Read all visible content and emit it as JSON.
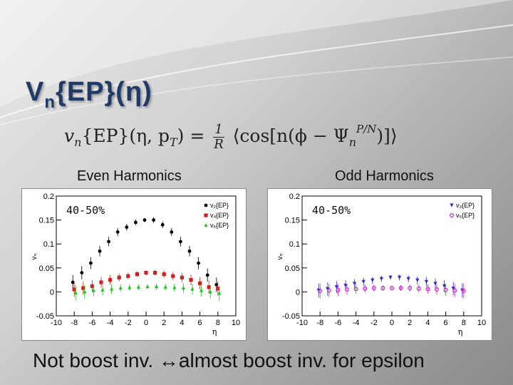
{
  "title": {
    "main": "V",
    "sub": "n",
    "rest": "{EP}(η)"
  },
  "formula": {
    "lhs_v": "v",
    "lhs_n": "n",
    "lhs_args": "{EP}(η, p",
    "lhs_T": "T",
    "lhs_close": ")",
    "eq": "=",
    "frac_num": "1",
    "frac_den": "R",
    "rhs": "⟨cos[n(ϕ − Ψ",
    "rhs_sub": "n",
    "rhs_sup": "P/N",
    "rhs_close": ")]⟩"
  },
  "captions": {
    "left": "Even Harmonics",
    "right": "Odd Harmonics"
  },
  "footer": "Not boost inv. ↔almost boost inv. for epsilon",
  "chart_data": [
    {
      "type": "scatter",
      "title": "",
      "annotation": "40-50%",
      "xlabel": "η",
      "ylabel": "vₙ",
      "xlim": [
        -10,
        10
      ],
      "ylim": [
        -0.05,
        0.2
      ],
      "xticks": [
        -10,
        -8,
        -6,
        -4,
        -2,
        0,
        2,
        4,
        6,
        8,
        10
      ],
      "yticks": [
        -0.05,
        0,
        0.05,
        0.1,
        0.15,
        0.2
      ],
      "ytick_labels": [
        "-0.05",
        "0",
        "0.05",
        "0.1",
        "0.15",
        "0.2"
      ],
      "legend_placement": "top-right",
      "series": [
        {
          "name": "v₂{EP}",
          "color": "#000000",
          "marker": "circle",
          "x": [
            -8,
            -7,
            -6,
            -5,
            -4,
            -3,
            -2,
            -1,
            0,
            1,
            2,
            3,
            4,
            5,
            6,
            7,
            8
          ],
          "y": [
            0.02,
            0.04,
            0.06,
            0.085,
            0.105,
            0.125,
            0.135,
            0.145,
            0.15,
            0.15,
            0.14,
            0.125,
            0.105,
            0.085,
            0.06,
            0.035,
            0.015
          ]
        },
        {
          "name": "v₄{EP}",
          "color": "#d0201e",
          "marker": "square",
          "x": [
            -8,
            -7,
            -6,
            -5,
            -4,
            -3,
            -2,
            -1,
            0,
            1,
            2,
            3,
            4,
            5,
            6,
            7,
            8
          ],
          "y": [
            0.005,
            0.008,
            0.012,
            0.02,
            0.025,
            0.03,
            0.033,
            0.037,
            0.04,
            0.04,
            0.037,
            0.033,
            0.03,
            0.025,
            0.018,
            0.01,
            0.007
          ]
        },
        {
          "name": "v₆{EP}",
          "color": "#1cc61c",
          "marker": "triangle",
          "x": [
            -8,
            -7,
            -6,
            -5,
            -4,
            -3,
            -2,
            -1,
            0,
            1,
            2,
            3,
            4,
            5,
            6,
            7,
            8
          ],
          "y": [
            -0.002,
            0.0,
            0.003,
            0.004,
            0.006,
            0.008,
            0.009,
            0.01,
            0.011,
            0.011,
            0.01,
            0.009,
            0.008,
            0.006,
            0.003,
            0.0,
            -0.003
          ]
        }
      ]
    },
    {
      "type": "scatter",
      "title": "",
      "annotation": "40-50%",
      "xlabel": "η",
      "ylabel": "vₙ",
      "xlim": [
        -10,
        10
      ],
      "ylim": [
        -0.05,
        0.2
      ],
      "xticks": [
        -10,
        -8,
        -6,
        -4,
        -2,
        0,
        2,
        4,
        6,
        8,
        10
      ],
      "yticks": [
        -0.05,
        0,
        0.05,
        0.1,
        0.15,
        0.2
      ],
      "ytick_labels": [
        "-0.05",
        "0",
        "0.05",
        "0.1",
        "0.15",
        "0.2"
      ],
      "legend_placement": "top-right",
      "series": [
        {
          "name": "v₃{EP}",
          "color": "#2a2acc",
          "marker": "triangle-down",
          "x": [
            -8,
            -7,
            -6,
            -5,
            -4,
            -3,
            -2,
            -1,
            0,
            1,
            2,
            3,
            4,
            5,
            6,
            7,
            8
          ],
          "y": [
            0.003,
            0.006,
            0.01,
            0.013,
            0.017,
            0.021,
            0.024,
            0.027,
            0.03,
            0.03,
            0.027,
            0.024,
            0.021,
            0.017,
            0.012,
            0.007,
            0.003
          ]
        },
        {
          "name": "v₅{EP}",
          "color": "#d020d0",
          "marker": "circle-open",
          "x": [
            -8,
            -7,
            -6,
            -5,
            -4,
            -3,
            -2,
            -1,
            0,
            1,
            2,
            3,
            4,
            5,
            6,
            7,
            8
          ],
          "y": [
            0.002,
            0.003,
            0.004,
            0.005,
            0.006,
            0.007,
            0.008,
            0.008,
            0.008,
            0.008,
            0.008,
            0.007,
            0.006,
            0.005,
            0.004,
            0.003,
            0.002
          ]
        }
      ]
    }
  ]
}
